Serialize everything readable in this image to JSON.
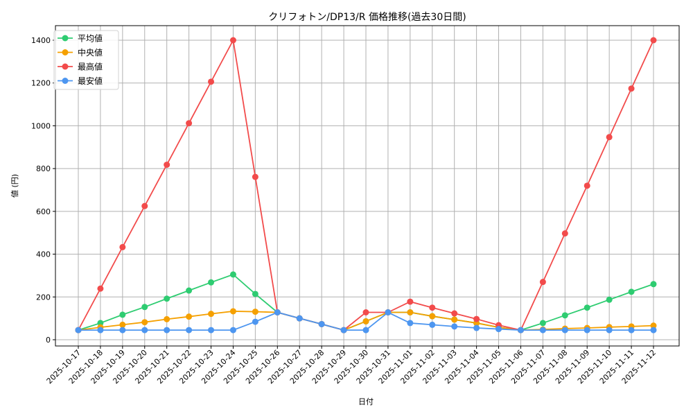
{
  "chart_data": {
    "type": "line",
    "title": "クリフォトン/DP13/R 価格推移(過去30日間)",
    "xlabel": "日付",
    "ylabel": "値 (円)",
    "ylim": [
      -15,
      1470
    ],
    "yticks": [
      0,
      200,
      400,
      600,
      800,
      1000,
      1200,
      1400
    ],
    "grid": true,
    "legend_position": "upper left",
    "categories": [
      "2025-10-17",
      "2025-10-18",
      "2025-10-19",
      "2025-10-20",
      "2025-10-21",
      "2025-10-22",
      "2025-10-23",
      "2025-10-24",
      "2025-10-25",
      "2025-10-26",
      "2025-10-27",
      "2025-10-28",
      "2025-10-29",
      "2025-10-30",
      "2025-10-31",
      "2025-11-01",
      "2025-11-02",
      "2025-11-03",
      "2025-11-04",
      "2025-11-05",
      "2025-11-06",
      "2025-11-07",
      "2025-11-08",
      "2025-11-09",
      "2025-11-10",
      "2025-11-11",
      "2025-11-12"
    ],
    "series": [
      {
        "name": "平均値",
        "color": "#2ecc71",
        "values": [
          45,
          78,
          117,
          153,
          192,
          230,
          268,
          305,
          214,
          128,
          100,
          73,
          45,
          86,
          128,
          128,
          110,
          94,
          78,
          58,
          45,
          78,
          114,
          150,
          187,
          224,
          260
        ]
      },
      {
        "name": "中央値",
        "color": "#f5a000",
        "values": [
          45,
          58,
          70,
          82,
          96,
          108,
          121,
          133,
          131,
          128,
          100,
          73,
          45,
          86,
          128,
          128,
          110,
          94,
          78,
          58,
          45,
          48,
          52,
          55,
          59,
          62,
          66
        ]
      },
      {
        "name": "最高値",
        "color": "#f24b4b",
        "values": [
          45,
          239,
          433,
          625,
          818,
          1012,
          1206,
          1400,
          761,
          128,
          100,
          73,
          45,
          128,
          128,
          178,
          150,
          123,
          97,
          68,
          45,
          270,
          497,
          720,
          947,
          1174,
          1400
        ]
      },
      {
        "name": "最安値",
        "color": "#4d96f0",
        "values": [
          45,
          45,
          45,
          45,
          45,
          45,
          45,
          45,
          84,
          128,
          100,
          73,
          45,
          45,
          128,
          78,
          70,
          62,
          55,
          50,
          45,
          45,
          45,
          45,
          45,
          45,
          45
        ]
      }
    ]
  }
}
